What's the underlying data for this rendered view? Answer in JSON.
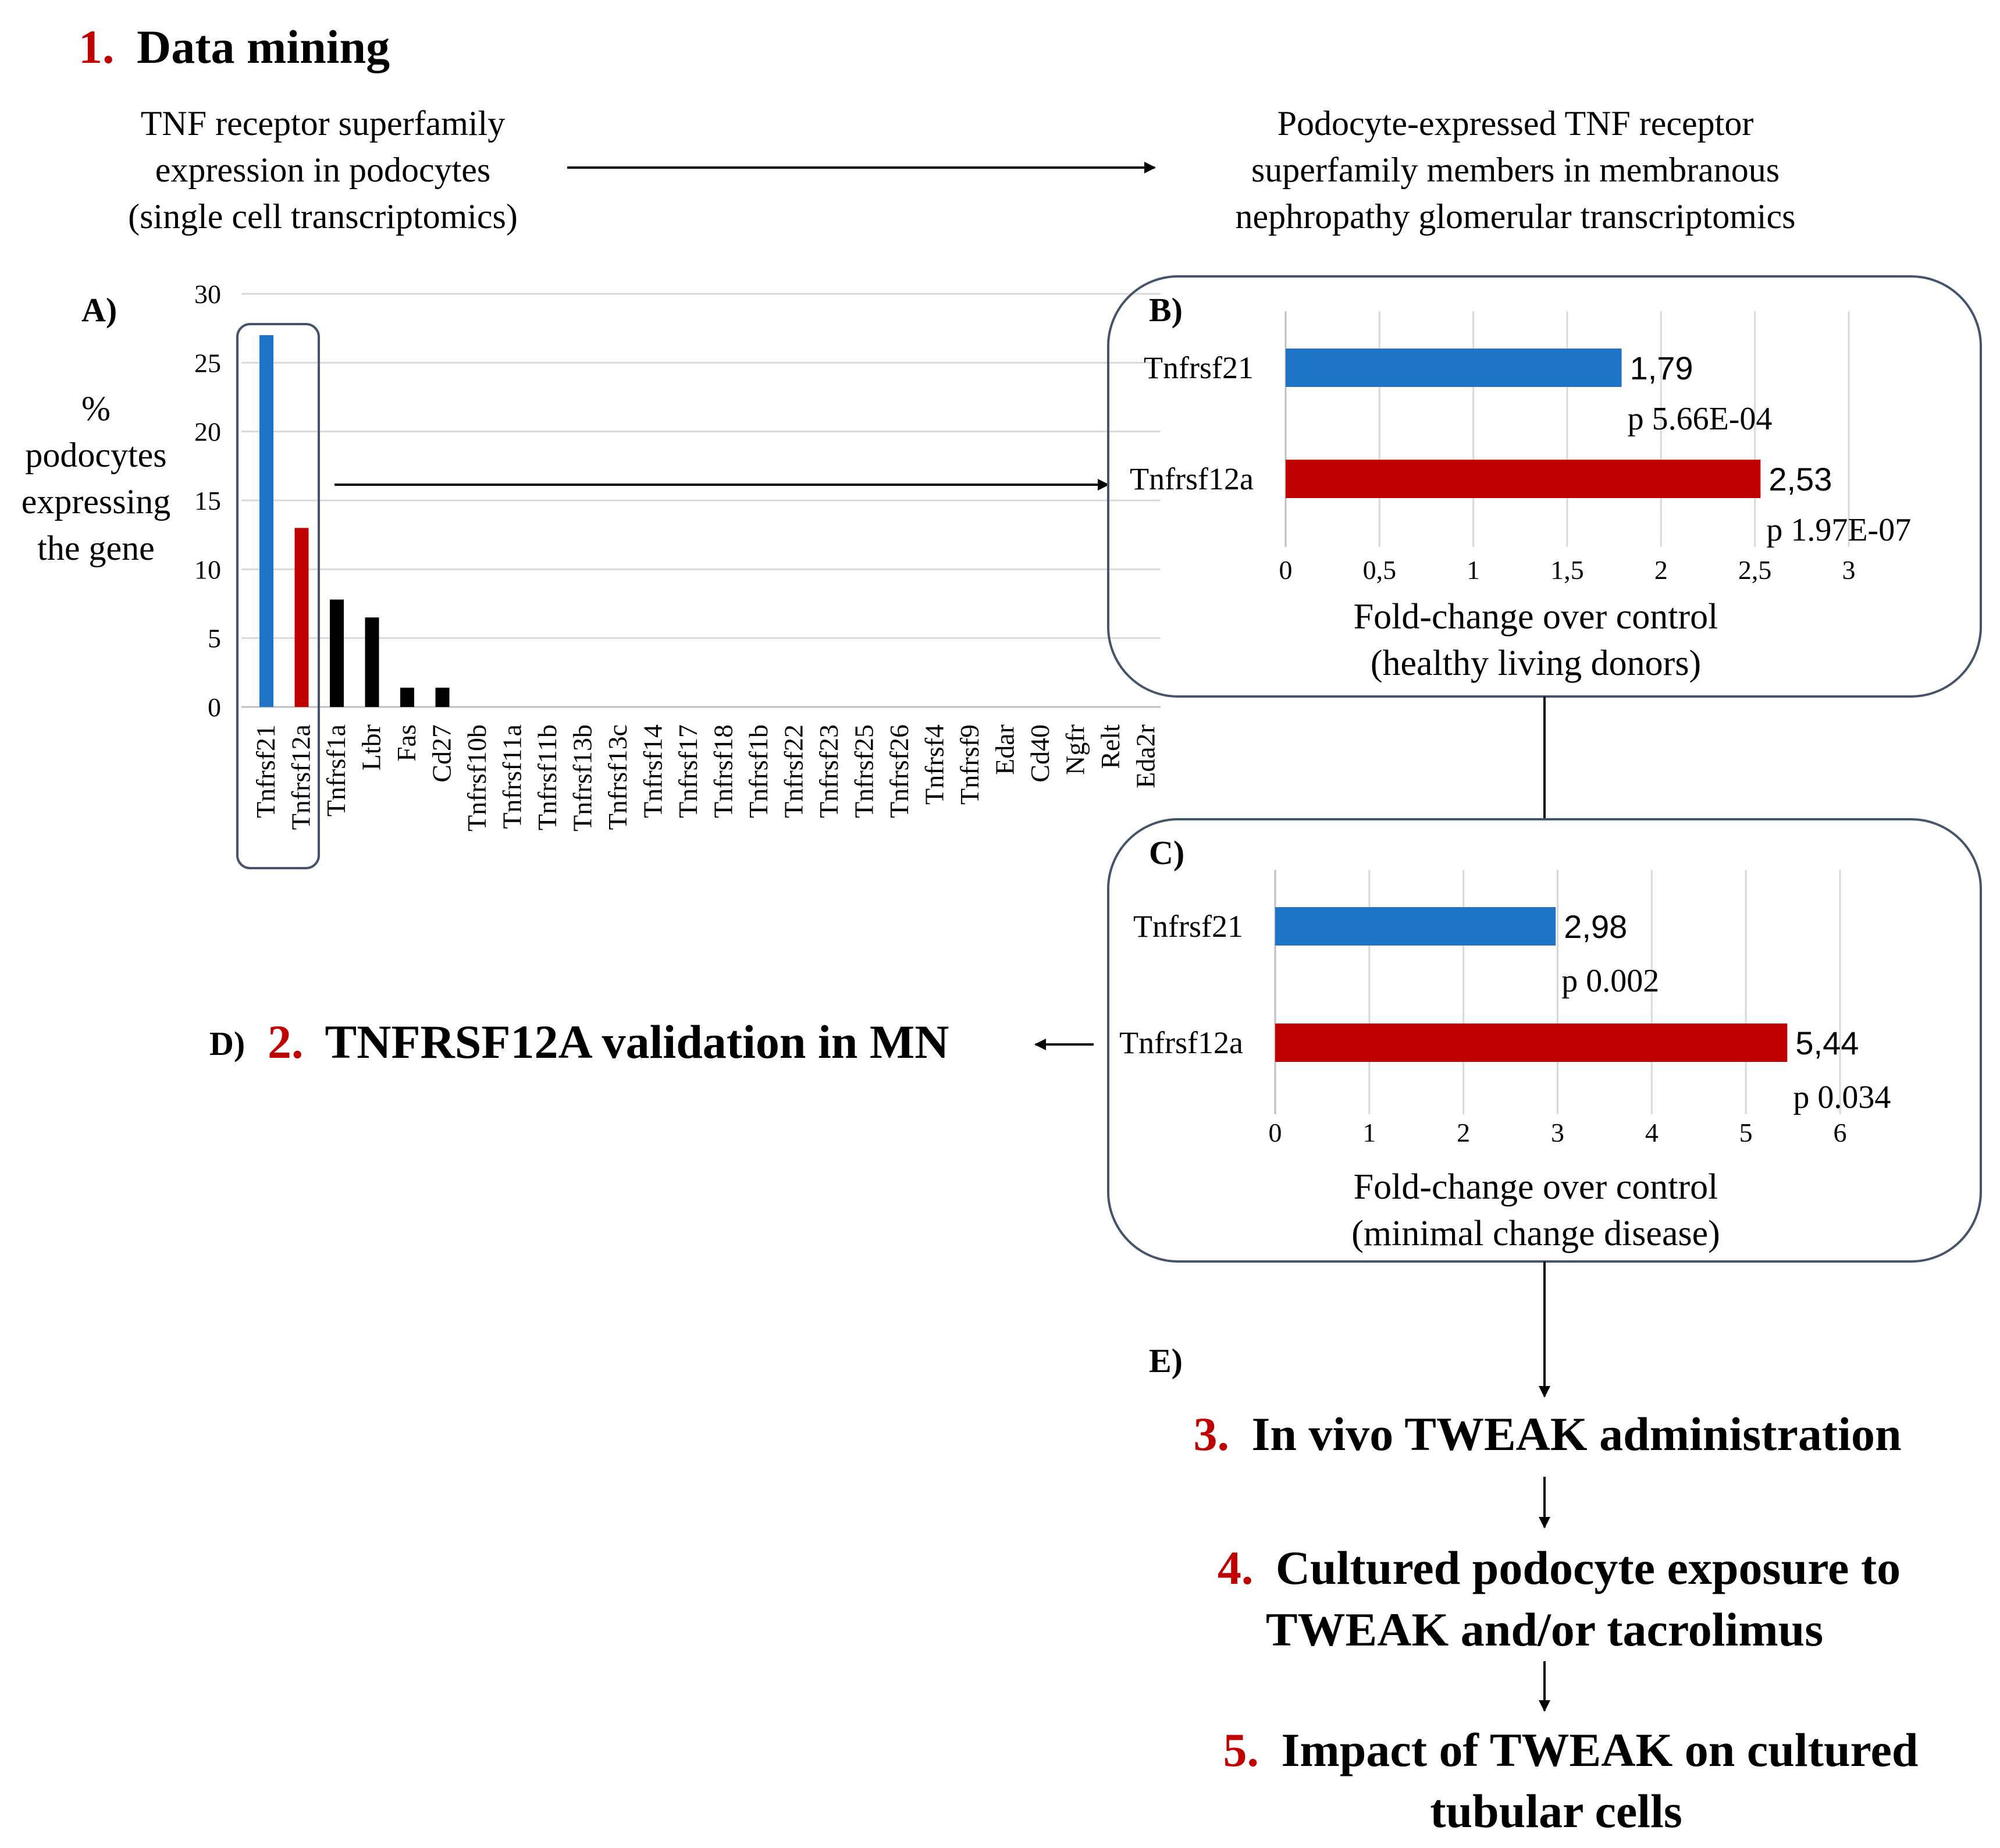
{
  "colors": {
    "blue": "#1f73c6",
    "red": "#c00000",
    "black": "#000000",
    "step_number": "#c00000",
    "panel_border": "#44546a",
    "grid": "#d9d9d9"
  },
  "step1": {
    "number": "1.",
    "title": "Data mining"
  },
  "left_header": [
    "TNF receptor superfamily",
    "expression in podocytes",
    "(single cell transcriptomics)"
  ],
  "right_header": [
    "Podocyte-expressed TNF receptor",
    "superfamily members in membranous",
    "nephropathy glomerular transcriptomics"
  ],
  "panel_a": {
    "label": "A)",
    "ylabel": [
      "%",
      "podocytes",
      "expressing",
      "the gene"
    ]
  },
  "panel_b": {
    "label": "B)",
    "xlabel": [
      "Fold-change over control",
      "(healthy living donors)"
    ]
  },
  "panel_c": {
    "label": "C)",
    "xlabel": [
      "Fold-change over control",
      "(minimal change disease)"
    ]
  },
  "panel_d": {
    "label": "D)",
    "number": "2.",
    "text": "TNFRSF12A validation in MN"
  },
  "panel_e": {
    "label": "E)"
  },
  "steps": [
    {
      "number": "3.",
      "lines": [
        "In vivo TWEAK administration"
      ]
    },
    {
      "number": "4.",
      "lines": [
        "Cultured podocyte exposure to",
        "TWEAK and/or tacrolimus"
      ]
    },
    {
      "number": "5.",
      "lines": [
        "Impact of TWEAK on cultured",
        "tubular cells"
      ]
    }
  ],
  "chart_data": [
    {
      "type": "bar",
      "id": "A",
      "orientation": "vertical",
      "categories": [
        "Tnfrsf21",
        "Tnfrsf12a",
        "Tnfrsf1a",
        "Ltbr",
        "Fas",
        "Cd27",
        "Tnfrsf10b",
        "Tnfrsf11a",
        "Tnfrsf11b",
        "Tnfrsf13b",
        "Tnfrsf13c",
        "Tnfrsf14",
        "Tnfrsf17",
        "Tnfrsf18",
        "Tnfrsf1b",
        "Tnfrsf22",
        "Tnfrsf23",
        "Tnfrsf25",
        "Tnfrsf26",
        "Tnfrsf4",
        "Tnfrsf9",
        "Edar",
        "Cd40",
        "Ngfr",
        "Relt",
        "Eda2r"
      ],
      "values": [
        27,
        13,
        7.8,
        6.5,
        1.4,
        1.4,
        0,
        0,
        0,
        0,
        0,
        0,
        0,
        0,
        0,
        0,
        0,
        0,
        0,
        0,
        0,
        0,
        0,
        0,
        0,
        0
      ],
      "bar_colors": [
        "blue",
        "red",
        "black",
        "black",
        "black",
        "black",
        "black",
        "black",
        "black",
        "black",
        "black",
        "black",
        "black",
        "black",
        "black",
        "black",
        "black",
        "black",
        "black",
        "black",
        "black",
        "black",
        "black",
        "black",
        "black",
        "black"
      ],
      "yticks": [
        "0",
        "5",
        "10",
        "15",
        "20",
        "25",
        "30"
      ],
      "ylim": [
        0,
        30
      ],
      "grid": true
    },
    {
      "type": "bar",
      "id": "B",
      "orientation": "horizontal",
      "categories": [
        "Tnfrsf21",
        "Tnfrsf12a"
      ],
      "values": [
        1.79,
        2.53
      ],
      "value_labels": [
        "1,79",
        "2,53"
      ],
      "pvalues": [
        "p 5.66E-04",
        "p 1.97E-07"
      ],
      "bar_colors": [
        "blue",
        "red"
      ],
      "xticks": [
        "0",
        "0,5",
        "1",
        "1,5",
        "2",
        "2,5",
        "3"
      ],
      "xlim": [
        0,
        3
      ],
      "grid": true
    },
    {
      "type": "bar",
      "id": "C",
      "orientation": "horizontal",
      "categories": [
        "Tnfrsf21",
        "Tnfrsf12a"
      ],
      "values": [
        2.98,
        5.44
      ],
      "value_labels": [
        "2,98",
        "5,44"
      ],
      "pvalues": [
        "p 0.002",
        "p 0.034"
      ],
      "bar_colors": [
        "blue",
        "red"
      ],
      "xticks": [
        "0",
        "1",
        "2",
        "3",
        "4",
        "5",
        "6"
      ],
      "xlim": [
        0,
        6
      ],
      "grid": true
    }
  ]
}
